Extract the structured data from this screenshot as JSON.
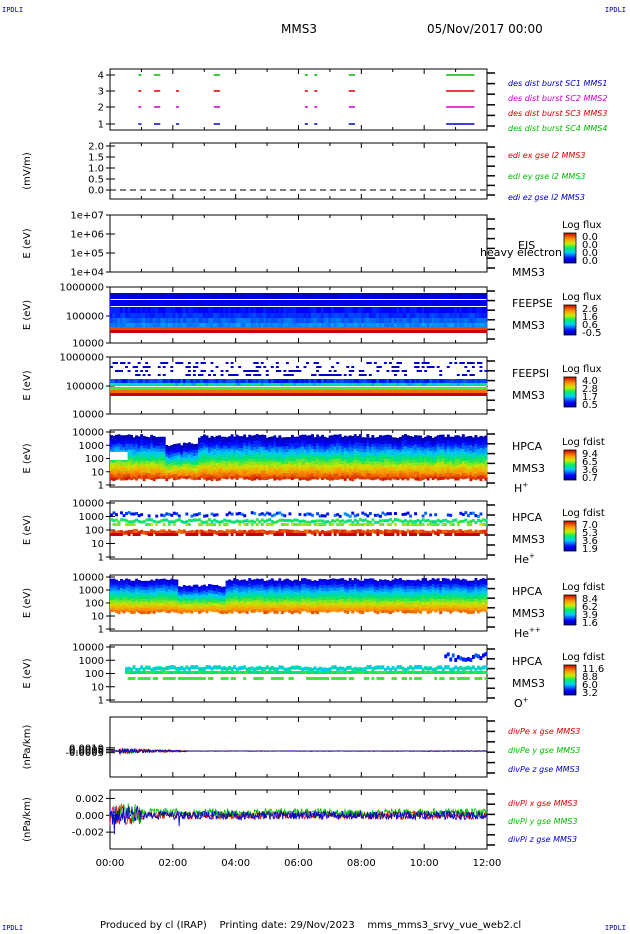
{
  "corner_tags": {
    "tl": "IPDLI",
    "tr": "IPDLI",
    "bl": "IPDLI",
    "br": "IPDLI"
  },
  "header": {
    "spacecraft": "MMS3",
    "date": "05/Nov/2017 00:00"
  },
  "footer": {
    "produced_by": "Produced by cl (IRAP)",
    "printing_date": "Printing date: 29/Nov/2023",
    "file": "mms_mms3_srvy_vue_web2.cl"
  },
  "time_axis": {
    "ticks": [
      "00:00",
      "02:00",
      "04:00",
      "06:00",
      "08:00",
      "10:00",
      "12:00"
    ]
  },
  "colors": {
    "red": "#dd0000",
    "green": "#00bb00",
    "blue": "#0000cc",
    "magenta": "#cc00cc"
  },
  "chart_data": [
    {
      "type": "scatter",
      "panel": "burst",
      "ylim": [
        0.5,
        4.5
      ],
      "y_ticks": [
        "4",
        "3",
        "2",
        "1"
      ],
      "legend": [
        {
          "text": "des dist burst SC1 MMS1",
          "color": "#0000cc"
        },
        {
          "text": "des dist burst SC2 MMS2",
          "color": "#cc00cc"
        },
        {
          "text": "des dist burst SC3 MMS3",
          "color": "#dd0000"
        },
        {
          "text": "des dist burst SC4 MMS4",
          "color": "#00bb00"
        }
      ],
      "series": [
        {
          "level": 4,
          "color": "#00bb00",
          "intervals": [
            [
              0.9,
              1.0
            ],
            [
              1.4,
              1.6
            ],
            [
              3.3,
              3.5
            ],
            [
              6.2,
              6.3
            ],
            [
              6.5,
              6.6
            ],
            [
              7.6,
              7.8
            ],
            [
              10.7,
              11.6
            ]
          ]
        },
        {
          "level": 3,
          "color": "#dd0000",
          "intervals": [
            [
              0.9,
              1.0
            ],
            [
              1.4,
              1.6
            ],
            [
              2.1,
              2.2
            ],
            [
              3.3,
              3.5
            ],
            [
              6.2,
              6.3
            ],
            [
              6.5,
              6.6
            ],
            [
              7.6,
              7.8
            ],
            [
              10.7,
              11.6
            ]
          ]
        },
        {
          "level": 2,
          "color": "#cc00cc",
          "intervals": [
            [
              0.9,
              1.0
            ],
            [
              1.4,
              1.6
            ],
            [
              2.1,
              2.2
            ],
            [
              3.3,
              3.5
            ],
            [
              6.2,
              6.3
            ],
            [
              6.5,
              6.6
            ],
            [
              7.6,
              7.8
            ],
            [
              10.7,
              11.6
            ]
          ]
        },
        {
          "level": 1,
          "color": "#0000cc",
          "intervals": [
            [
              0.9,
              1.0
            ],
            [
              1.4,
              1.6
            ],
            [
              2.1,
              2.2
            ],
            [
              3.3,
              3.5
            ],
            [
              6.2,
              6.3
            ],
            [
              6.5,
              6.6
            ],
            [
              7.6,
              7.8
            ],
            [
              10.7,
              11.6
            ]
          ]
        }
      ]
    },
    {
      "type": "line",
      "panel": "edi",
      "ylabel": "(mV/m)",
      "ylim": [
        -0.2,
        2.0
      ],
      "y_ticks": [
        "2.0",
        "1.5",
        "1.0",
        "0.5",
        "0.0"
      ],
      "legend": [
        {
          "text": "edi ex gse l2 MMS3",
          "color": "#dd0000"
        },
        {
          "text": "edi ey gse l2 MMS3",
          "color": "#00bb00"
        },
        {
          "text": "edi ez gse l2 MMS3",
          "color": "#0000cc"
        }
      ],
      "series": [
        {
          "name": "zero",
          "y": 0.0
        }
      ]
    },
    {
      "type": "heatmap",
      "panel": "eis",
      "ylabel": "E (eV)",
      "scale": "log",
      "y_ticks": [
        "1e+07",
        "1e+06",
        "1e+05",
        "1e+04"
      ],
      "labels": [
        "EIS",
        "MMS3"
      ],
      "overlay_text": "heavy electron to",
      "colorbar": {
        "title": "Log flux",
        "ticks": [
          "0.0",
          "0.0",
          "0.0",
          "0.0"
        ]
      }
    },
    {
      "type": "heatmap",
      "panel": "feepse",
      "ylabel": "E (eV)",
      "scale": "log",
      "y_ticks": [
        "1000000",
        "100000",
        "10000"
      ],
      "labels": [
        "FEEPSE",
        "MMS3"
      ],
      "colorbar": {
        "title": "Log flux",
        "ticks": [
          "2.6",
          "1.6",
          "0.6",
          "-0.5"
        ]
      }
    },
    {
      "type": "heatmap",
      "panel": "feepsi",
      "ylabel": "E (eV)",
      "scale": "log",
      "y_ticks": [
        "1000000",
        "100000",
        "10000"
      ],
      "labels": [
        "FEEPSI",
        "MMS3"
      ],
      "colorbar": {
        "title": "Log flux",
        "ticks": [
          "4.0",
          "2.8",
          "1.7",
          "0.5"
        ]
      }
    },
    {
      "type": "heatmap",
      "panel": "hpca_h",
      "ylabel": "E (eV)",
      "scale": "log",
      "y_ticks": [
        "10000",
        "1000",
        "100",
        "10",
        "1"
      ],
      "labels": [
        "HPCA",
        "MMS3"
      ],
      "species": "H",
      "charge": "+",
      "colorbar": {
        "title": "Log fdist",
        "ticks": [
          "9.4",
          "6.5",
          "3.6",
          "0.7"
        ]
      }
    },
    {
      "type": "heatmap",
      "panel": "hpca_he",
      "ylabel": "E (eV)",
      "scale": "log",
      "y_ticks": [
        "10000",
        "1000",
        "100",
        "10",
        "1"
      ],
      "labels": [
        "HPCA",
        "MMS3"
      ],
      "species": "He",
      "charge": "+",
      "colorbar": {
        "title": "Log fdist",
        "ticks": [
          "7.0",
          "5.3",
          "3.6",
          "1.9"
        ]
      }
    },
    {
      "type": "heatmap",
      "panel": "hpca_hepp",
      "ylabel": "E (eV)",
      "scale": "log",
      "y_ticks": [
        "10000",
        "1000",
        "100",
        "10",
        "1"
      ],
      "labels": [
        "HPCA",
        "MMS3"
      ],
      "species": "He",
      "charge": "++",
      "colorbar": {
        "title": "Log fdist",
        "ticks": [
          "8.4",
          "6.2",
          "3.9",
          "1.6"
        ]
      }
    },
    {
      "type": "heatmap",
      "panel": "hpca_o",
      "ylabel": "E (eV)",
      "scale": "log",
      "y_ticks": [
        "10000",
        "1000",
        "100",
        "10",
        "1"
      ],
      "labels": [
        "HPCA",
        "MMS3"
      ],
      "species": "O",
      "charge": "+",
      "colorbar": {
        "title": "Log fdist",
        "ticks": [
          "11.6",
          "8.8",
          "6.0",
          "3.2"
        ]
      }
    },
    {
      "type": "line",
      "panel": "divpe",
      "ylabel": "(nPa/km)",
      "ylim": [
        -0.008,
        0.0105
      ],
      "y_ticks": [
        "0.0010",
        "0.0005",
        "0.0000",
        "-0.0005"
      ],
      "legend": [
        {
          "text": "divPe x gse MMS3",
          "color": "#dd0000"
        },
        {
          "text": "divPe y gse MMS3",
          "color": "#00bb00"
        },
        {
          "text": "divPe z gse MMS3",
          "color": "#0000cc"
        }
      ]
    },
    {
      "type": "line",
      "panel": "divpi",
      "ylabel": "(nPa/km)",
      "ylim": [
        -0.004,
        0.003
      ],
      "y_ticks": [
        "0.002",
        "0.000",
        "-0.002"
      ],
      "legend": [
        {
          "text": "divPi x gse MMS3",
          "color": "#dd0000"
        },
        {
          "text": "divPi y gse MMS3",
          "color": "#00bb00"
        },
        {
          "text": "divPi z gse MMS3",
          "color": "#0000cc"
        }
      ]
    }
  ]
}
